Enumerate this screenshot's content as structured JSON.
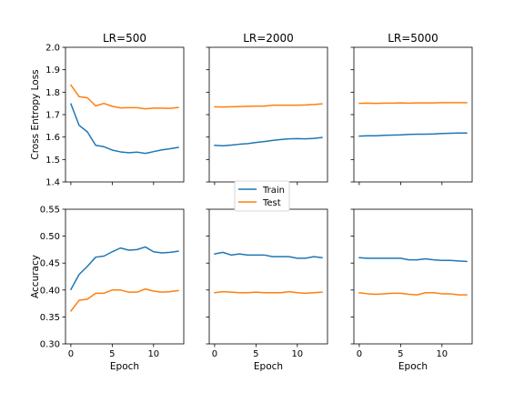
{
  "chart_data": [
    {
      "type": "line",
      "title": "LR=500",
      "xlabel": "",
      "ylabel": "Cross Entropy Loss",
      "ylim": [
        1.4,
        2.0
      ],
      "xlim": [
        -0.65,
        13.65
      ],
      "yticks": [
        "1.4",
        "1.5",
        "1.6",
        "1.7",
        "1.8",
        "1.9",
        "2.0"
      ],
      "xticks": [],
      "x": [
        0,
        1,
        2,
        3,
        4,
        5,
        6,
        7,
        8,
        9,
        10,
        11,
        12,
        13
      ],
      "series": [
        {
          "name": "Train",
          "color": "#1f77b4",
          "values": [
            1.748,
            1.652,
            1.623,
            1.563,
            1.557,
            1.542,
            1.534,
            1.53,
            1.533,
            1.527,
            1.535,
            1.543,
            1.548,
            1.554
          ]
        },
        {
          "name": "Test",
          "color": "#ff7f0e",
          "values": [
            1.832,
            1.78,
            1.775,
            1.739,
            1.75,
            1.737,
            1.73,
            1.731,
            1.731,
            1.726,
            1.729,
            1.729,
            1.728,
            1.732
          ]
        }
      ]
    },
    {
      "type": "line",
      "title": "LR=2000",
      "xlabel": "",
      "ylabel": "",
      "ylim": [
        1.4,
        2.0
      ],
      "xlim": [
        -0.65,
        13.65
      ],
      "yticks": [],
      "xticks": [],
      "x": [
        0,
        1,
        2,
        3,
        4,
        5,
        6,
        7,
        8,
        9,
        10,
        11,
        12,
        13
      ],
      "series": [
        {
          "name": "Train",
          "color": "#1f77b4",
          "values": [
            1.563,
            1.561,
            1.564,
            1.568,
            1.571,
            1.576,
            1.58,
            1.585,
            1.589,
            1.592,
            1.593,
            1.592,
            1.594,
            1.598
          ]
        },
        {
          "name": "Test",
          "color": "#ff7f0e",
          "values": [
            1.735,
            1.734,
            1.735,
            1.736,
            1.737,
            1.738,
            1.738,
            1.742,
            1.742,
            1.742,
            1.742,
            1.743,
            1.745,
            1.748
          ]
        }
      ]
    },
    {
      "type": "line",
      "title": "LR=5000",
      "xlabel": "",
      "ylabel": "",
      "ylim": [
        1.4,
        2.0
      ],
      "xlim": [
        -0.65,
        13.65
      ],
      "yticks": [],
      "xticks": [],
      "x": [
        0,
        1,
        2,
        3,
        4,
        5,
        6,
        7,
        8,
        9,
        10,
        11,
        12,
        13
      ],
      "series": [
        {
          "name": "Train",
          "color": "#1f77b4",
          "values": [
            1.604,
            1.606,
            1.606,
            1.608,
            1.609,
            1.61,
            1.612,
            1.613,
            1.613,
            1.614,
            1.616,
            1.617,
            1.618,
            1.618
          ]
        },
        {
          "name": "Test",
          "color": "#ff7f0e",
          "values": [
            1.75,
            1.751,
            1.75,
            1.751,
            1.751,
            1.752,
            1.751,
            1.752,
            1.752,
            1.752,
            1.753,
            1.753,
            1.753,
            1.753
          ]
        }
      ]
    },
    {
      "type": "line",
      "title": "",
      "xlabel": "Epoch",
      "ylabel": "Accuracy",
      "ylim": [
        0.3,
        0.55
      ],
      "xlim": [
        -0.65,
        13.65
      ],
      "yticks": [
        "0.30",
        "0.35",
        "0.40",
        "0.45",
        "0.50",
        "0.55"
      ],
      "xticks": [
        "0",
        "5",
        "10"
      ],
      "x": [
        0,
        1,
        2,
        3,
        4,
        5,
        6,
        7,
        8,
        9,
        10,
        11,
        12,
        13
      ],
      "series": [
        {
          "name": "Train",
          "color": "#1f77b4",
          "values": [
            0.401,
            0.429,
            0.444,
            0.461,
            0.463,
            0.471,
            0.478,
            0.474,
            0.475,
            0.48,
            0.471,
            0.469,
            0.47,
            0.472
          ]
        },
        {
          "name": "Test",
          "color": "#ff7f0e",
          "values": [
            0.361,
            0.381,
            0.383,
            0.394,
            0.394,
            0.4,
            0.4,
            0.396,
            0.396,
            0.402,
            0.398,
            0.396,
            0.397,
            0.399
          ]
        }
      ]
    },
    {
      "type": "line",
      "title": "",
      "xlabel": "Epoch",
      "ylabel": "",
      "ylim": [
        0.3,
        0.55
      ],
      "xlim": [
        -0.65,
        13.65
      ],
      "yticks": [],
      "xticks": [
        "0",
        "5",
        "10"
      ],
      "x": [
        0,
        1,
        2,
        3,
        4,
        5,
        6,
        7,
        8,
        9,
        10,
        11,
        12,
        13
      ],
      "series": [
        {
          "name": "Train",
          "color": "#1f77b4",
          "values": [
            0.467,
            0.47,
            0.465,
            0.467,
            0.465,
            0.465,
            0.465,
            0.462,
            0.462,
            0.462,
            0.459,
            0.459,
            0.462,
            0.46
          ]
        },
        {
          "name": "Test",
          "color": "#ff7f0e",
          "values": [
            0.395,
            0.397,
            0.396,
            0.395,
            0.395,
            0.396,
            0.395,
            0.395,
            0.395,
            0.397,
            0.395,
            0.394,
            0.395,
            0.396
          ]
        }
      ]
    },
    {
      "type": "line",
      "title": "",
      "xlabel": "Epoch",
      "ylabel": "",
      "ylim": [
        0.3,
        0.55
      ],
      "xlim": [
        -0.65,
        13.65
      ],
      "yticks": [],
      "xticks": [
        "0",
        "5",
        "10"
      ],
      "x": [
        0,
        1,
        2,
        3,
        4,
        5,
        6,
        7,
        8,
        9,
        10,
        11,
        12,
        13
      ],
      "series": [
        {
          "name": "Train",
          "color": "#1f77b4",
          "values": [
            0.46,
            0.459,
            0.459,
            0.459,
            0.459,
            0.459,
            0.456,
            0.456,
            0.458,
            0.456,
            0.455,
            0.455,
            0.454,
            0.453
          ]
        },
        {
          "name": "Test",
          "color": "#ff7f0e",
          "values": [
            0.395,
            0.393,
            0.392,
            0.393,
            0.394,
            0.394,
            0.392,
            0.391,
            0.395,
            0.395,
            0.393,
            0.393,
            0.391,
            0.391
          ]
        }
      ]
    }
  ],
  "legend": {
    "placement": "center",
    "items": [
      {
        "label": "Train",
        "color": "#1f77b4"
      },
      {
        "label": "Test",
        "color": "#ff7f0e"
      }
    ]
  }
}
